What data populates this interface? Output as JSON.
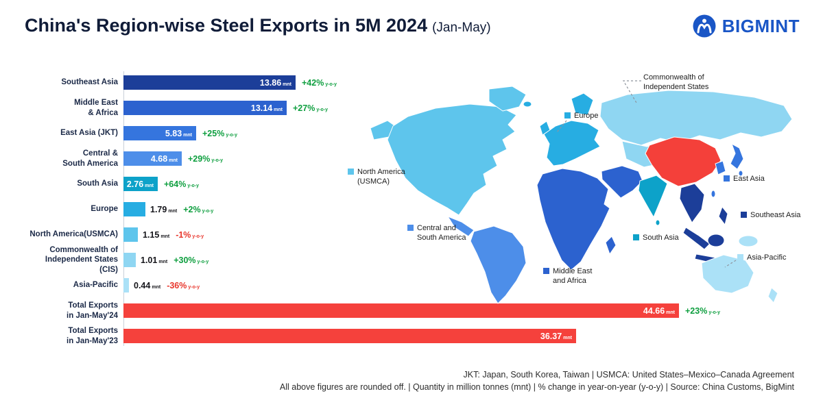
{
  "header": {
    "title": "China's Region-wise Steel Exports in 5M 2024",
    "subtitle": "(Jan-May)",
    "brand": "BIGMINT"
  },
  "colors": {
    "southeast_asia": "#1c3e99",
    "middle_east_africa": "#2c62cf",
    "east_asia": "#3575de",
    "central_south_america": "#4d8ee9",
    "south_asia": "#0da2c9",
    "europe": "#27ade2",
    "north_america": "#5ec5ec",
    "cis": "#8fd6f2",
    "asia_pacific": "#abe1f7",
    "china": "#f4403a",
    "total": "#f5413c",
    "growth_positive": "#0d9e3e",
    "growth_negative": "#e8352b"
  },
  "chart_data": {
    "type": "bar",
    "orientation": "horizontal",
    "title": "China's Region-wise Steel Exports in 5M 2024 (Jan-May)",
    "unit": "mnt",
    "categories": [
      "Southeast Asia",
      "Middle East & Africa",
      "East Asia (JKT)",
      "Central & South America",
      "South Asia",
      "Europe",
      "North America(USMCA)",
      "Commonwealth of Independent States (CIS)",
      "Asia-Pacific",
      "Total Exports in Jan-May'24",
      "Total Exports in Jan-May'23"
    ],
    "values": [
      13.86,
      13.14,
      5.83,
      4.68,
      2.76,
      1.79,
      1.15,
      1.01,
      0.44,
      44.66,
      36.37
    ],
    "yoy_change": [
      "+42%",
      "+27%",
      "+25%",
      "+29%",
      "+64%",
      "+2%",
      "-1%",
      "+30%",
      "-36%",
      "+23%",
      null
    ]
  },
  "bars": [
    {
      "lines": [
        "Southeast Asia"
      ],
      "value": 13.86,
      "value_label": "13.86",
      "unit": "mnt",
      "growth": "+42%",
      "growth_suffix": "y-o-y",
      "color_key": "southeast_asia"
    },
    {
      "lines": [
        "Middle East",
        "& Africa"
      ],
      "value": 13.14,
      "value_label": "13.14",
      "unit": "mnt",
      "growth": "+27%",
      "growth_suffix": "y-o-y",
      "color_key": "middle_east_africa"
    },
    {
      "lines": [
        "East Asia (JKT)"
      ],
      "value": 5.83,
      "value_label": "5.83",
      "unit": "mnt",
      "growth": "+25%",
      "growth_suffix": "y-o-y",
      "color_key": "east_asia"
    },
    {
      "lines": [
        "Central &",
        "South America"
      ],
      "value": 4.68,
      "value_label": "4.68",
      "unit": "mnt",
      "growth": "+29%",
      "growth_suffix": "y-o-y",
      "color_key": "central_south_america"
    },
    {
      "lines": [
        "South Asia"
      ],
      "value": 2.76,
      "value_label": "2.76",
      "unit": "mnt",
      "growth": "+64%",
      "growth_suffix": "y-o-y",
      "color_key": "south_asia"
    },
    {
      "lines": [
        "Europe"
      ],
      "value": 1.79,
      "value_label": "1.79",
      "unit": "mnt",
      "growth": "+2%",
      "growth_suffix": "y-o-y",
      "color_key": "europe"
    },
    {
      "lines": [
        "North America(USMCA)"
      ],
      "value": 1.15,
      "value_label": "1.15",
      "unit": "mnt",
      "growth": "-1%",
      "growth_suffix": "y-o-y",
      "color_key": "north_america"
    },
    {
      "lines": [
        "Commonwealth of",
        "Independent States (CIS)"
      ],
      "value": 1.01,
      "value_label": "1.01",
      "unit": "mnt",
      "growth": "+30%",
      "growth_suffix": "y-o-y",
      "color_key": "cis"
    },
    {
      "lines": [
        "Asia-Pacific"
      ],
      "value": 0.44,
      "value_label": "0.44",
      "unit": "mnt",
      "growth": "-36%",
      "growth_suffix": "y-o-y",
      "color_key": "asia_pacific"
    },
    {
      "lines": [
        "Total Exports",
        "in Jan-May'24"
      ],
      "value": 44.66,
      "value_label": "44.66",
      "unit": "mnt",
      "growth": "+23%",
      "growth_suffix": "y-o-y",
      "color_key": "total"
    },
    {
      "lines": [
        "Total Exports",
        "in Jan-May'23"
      ],
      "value": 36.37,
      "value_label": "36.37",
      "unit": "mnt",
      "growth": null,
      "growth_suffix": "y-o-y",
      "color_key": "total"
    }
  ],
  "map": {
    "labels": [
      {
        "id": "north-america",
        "line1": "North America",
        "line2": "(USMCA)",
        "color_key": "north_america"
      },
      {
        "id": "central-south-america",
        "line1": "Central and",
        "line2": "South America",
        "color_key": "central_south_america"
      },
      {
        "id": "middle-east-africa",
        "line1": "Middle East",
        "line2": "and Africa",
        "color_key": "middle_east_africa"
      },
      {
        "id": "south-asia",
        "line1": "South Asia",
        "line2": null,
        "color_key": "south_asia"
      },
      {
        "id": "east-asia",
        "line1": "East Asia",
        "line2": null,
        "color_key": "east_asia"
      },
      {
        "id": "southeast-asia",
        "line1": "Southeast Asia",
        "line2": null,
        "color_key": "southeast_asia"
      },
      {
        "id": "asia-pacific",
        "line1": "Asia-Pacific",
        "line2": null,
        "color_key": "asia_pacific"
      },
      {
        "id": "europe",
        "line1": "Europe",
        "line2": null,
        "color_key": "europe"
      },
      {
        "id": "cis",
        "line1": "Commonwealth of",
        "line2": "Independent States",
        "color_key": null
      }
    ]
  },
  "footnotes": [
    "JKT: Japan, South Korea, Taiwan | USMCA: United States–Mexico–Canada Agreement",
    "All above figures are rounded off. | Quantity in million tonnes (mnt) | % change in year-on-year (y-o-y) | Source: China Customs, BigMint"
  ]
}
